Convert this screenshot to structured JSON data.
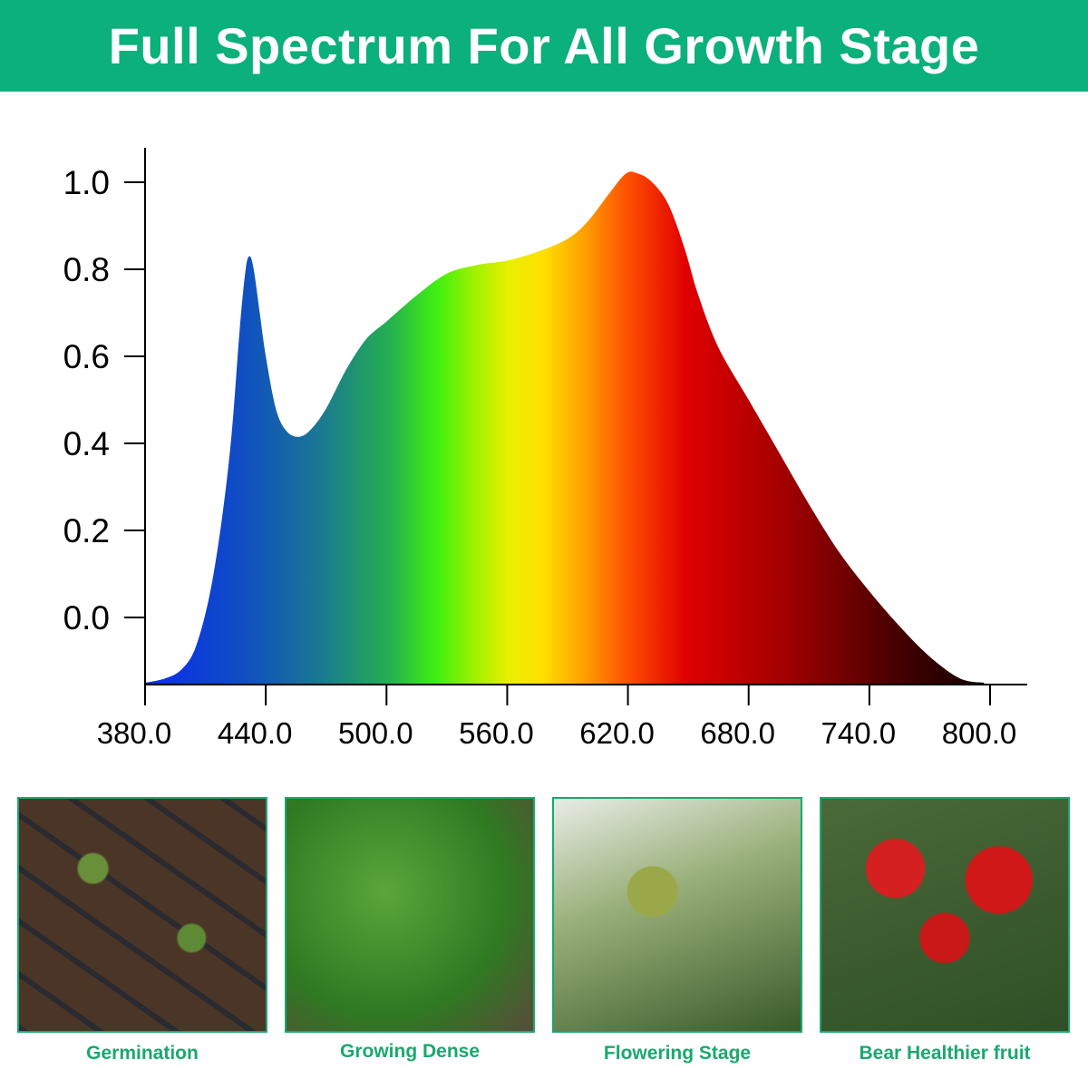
{
  "banner": {
    "title": "Full Spectrum For All Growth Stage",
    "color": "#0bb07a"
  },
  "chart_data": {
    "type": "area",
    "title": "",
    "xlabel": "",
    "ylabel": "",
    "xlim": [
      380,
      800
    ],
    "ylim": [
      -0.15,
      1.05
    ],
    "x_ticks": [
      "380.0",
      "440.0",
      "500.0",
      "560.0",
      "620.0",
      "680.0",
      "740.0",
      "800.0"
    ],
    "y_ticks": [
      "1.0",
      "0.8",
      "0.6",
      "0.4",
      "0.2",
      "0.0"
    ],
    "grid": false,
    "fill": "visible-spectrum gradient (blue to deep red)",
    "x": [
      380,
      390,
      398,
      405,
      412,
      418,
      423,
      427,
      430,
      432,
      434,
      437,
      440,
      445,
      450,
      456,
      462,
      470,
      480,
      490,
      500,
      515,
      530,
      545,
      560,
      575,
      590,
      600,
      610,
      619,
      625,
      632,
      640,
      648,
      655,
      665,
      680,
      695,
      710,
      725,
      740,
      755,
      770,
      785,
      797
    ],
    "y": [
      -0.15,
      -0.14,
      -0.12,
      -0.07,
      0.05,
      0.22,
      0.42,
      0.66,
      0.8,
      0.83,
      0.8,
      0.7,
      0.6,
      0.48,
      0.43,
      0.415,
      0.43,
      0.48,
      0.57,
      0.64,
      0.68,
      0.74,
      0.79,
      0.81,
      0.82,
      0.84,
      0.87,
      0.91,
      0.97,
      1.02,
      1.02,
      1.0,
      0.95,
      0.85,
      0.74,
      0.62,
      0.5,
      0.38,
      0.26,
      0.15,
      0.06,
      -0.02,
      -0.09,
      -0.14,
      -0.15
    ]
  },
  "stages": [
    {
      "label": "Germination"
    },
    {
      "label": "Growing Dense"
    },
    {
      "label": "Flowering Stage"
    },
    {
      "label": "Bear Healthier fruit"
    }
  ],
  "caption_color": "#1aa86e"
}
